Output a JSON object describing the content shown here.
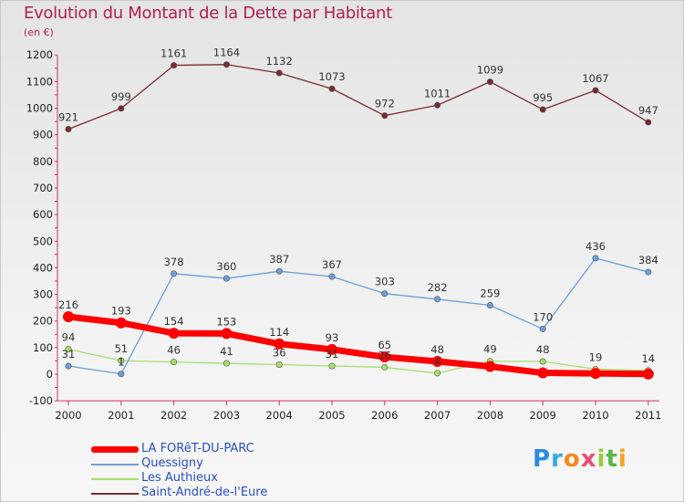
{
  "title": "Evolution du Montant de la Dette par Habitant",
  "subtitle": "(en €)",
  "logo": {
    "p": "P",
    "r": "r",
    "o": "o",
    "x": "x",
    "i1": "i",
    "t": "t",
    "i2": "i"
  },
  "chart_data": {
    "type": "line",
    "x": [
      "2000",
      "2001",
      "2002",
      "2003",
      "2004",
      "2005",
      "2006",
      "2007",
      "2008",
      "2009",
      "2010",
      "2011"
    ],
    "ylim": [
      -100,
      1200
    ],
    "yticks": [
      -100,
      0,
      100,
      200,
      300,
      400,
      500,
      600,
      700,
      800,
      900,
      1000,
      1100,
      1200
    ],
    "grid": false,
    "legend_position": "bottom-left",
    "series": [
      {
        "name": "LA FORêT-DU-PARC",
        "color": "#ff0000",
        "width": 7,
        "marker": 6,
        "values": [
          216,
          193,
          154,
          153,
          114,
          93,
          65,
          48,
          29,
          5,
          3,
          1
        ],
        "labels": [
          "216",
          "193",
          "154",
          "153",
          "114",
          "93",
          "65",
          "48",
          "",
          "",
          "",
          ""
        ]
      },
      {
        "name": "Quessigny",
        "color": "#6aa0d8",
        "width": 1.3,
        "marker": 3.2,
        "values": [
          31,
          1,
          378,
          360,
          387,
          367,
          303,
          282,
          259,
          170,
          436,
          384
        ],
        "labels": [
          "31",
          "1",
          "378",
          "360",
          "387",
          "367",
          "303",
          "282",
          "259",
          "170",
          "436",
          "384"
        ]
      },
      {
        "name": "Les Authieux",
        "color": "#a6de6e",
        "width": 1.3,
        "marker": 3.2,
        "values": [
          94,
          51,
          46,
          41,
          36,
          31,
          26,
          4,
          49,
          48,
          19,
          14
        ],
        "labels": [
          "94",
          "51",
          "46",
          "41",
          "36",
          "31",
          "26",
          "4",
          "49",
          "48",
          "19",
          "14"
        ]
      },
      {
        "name": "Saint-André-de-l'Eure",
        "color": "#7a2a30",
        "width": 1.3,
        "marker": 3.2,
        "values": [
          921,
          999,
          1161,
          1164,
          1132,
          1073,
          972,
          1011,
          1099,
          995,
          1067,
          947
        ],
        "labels": [
          "921",
          "999",
          "1161",
          "1164",
          "1132",
          "1073",
          "972",
          "1011",
          "1099",
          "995",
          "1067",
          "947"
        ]
      }
    ]
  }
}
